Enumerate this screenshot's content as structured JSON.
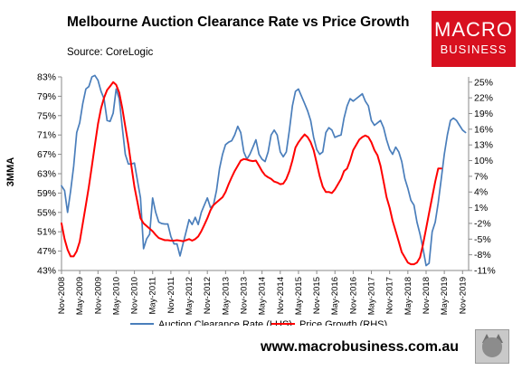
{
  "header": {
    "title": "Melbourne Auction Clearance Rate vs Price Growth",
    "source": "Source: CoreLogic"
  },
  "logo": {
    "line1": "MACRO",
    "line2": "BUSINESS"
  },
  "footer": {
    "website": "www.macrobusiness.com.au"
  },
  "colors": {
    "clearance": "#4a7ebb",
    "growth": "#ff0000",
    "logo_bg": "#d8101f"
  },
  "chart_data": {
    "type": "line",
    "ylabel": "3MMA",
    "y_left": {
      "min": 43,
      "max": 83,
      "ticks": [
        "43%",
        "47%",
        "51%",
        "55%",
        "59%",
        "63%",
        "67%",
        "71%",
        "75%",
        "79%",
        "83%"
      ]
    },
    "y_right": {
      "min": -11,
      "max": 26,
      "ticks": [
        "-11%",
        "-8%",
        "-5%",
        "-2%",
        "1%",
        "4%",
        "7%",
        "10%",
        "13%",
        "16%",
        "19%",
        "22%",
        "25%"
      ]
    },
    "x_labels": [
      "Nov-2008",
      "May-2009",
      "Nov-2009",
      "May-2010",
      "Nov-2010",
      "May-2011",
      "Nov-2011",
      "May-2012",
      "Nov-2012",
      "May-2013",
      "Nov-2013",
      "May-2014",
      "Nov-2014",
      "May-2015",
      "Nov-2015",
      "May-2016",
      "Nov-2016",
      "May-2017",
      "Nov-2017",
      "May-2018",
      "Nov-2018",
      "May-2019",
      "Nov-2019"
    ],
    "series": [
      {
        "name": "Auction Clearance Rate (LHS)",
        "axis": "left",
        "points": [
          [
            "2008-11",
            60.5
          ],
          [
            "2008-12",
            59.5
          ],
          [
            "2009-01",
            55.0
          ],
          [
            "2009-02",
            59.5
          ],
          [
            "2009-03",
            64.5
          ],
          [
            "2009-04",
            71.5
          ],
          [
            "2009-05",
            73.5
          ],
          [
            "2009-06",
            77.5
          ],
          [
            "2009-07",
            80.5
          ],
          [
            "2009-08",
            81.0
          ],
          [
            "2009-09",
            83.0
          ],
          [
            "2009-10",
            83.3
          ],
          [
            "2009-11",
            82.3
          ],
          [
            "2009-12",
            80.0
          ],
          [
            "2010-01",
            78.5
          ],
          [
            "2010-02",
            74.0
          ],
          [
            "2010-03",
            73.8
          ],
          [
            "2010-04",
            75.5
          ],
          [
            "2010-05",
            80.5
          ],
          [
            "2010-06",
            78.5
          ],
          [
            "2010-07",
            72.5
          ],
          [
            "2010-08",
            67.0
          ],
          [
            "2010-09",
            65.0
          ],
          [
            "2010-10",
            65.0
          ],
          [
            "2010-11",
            65.2
          ],
          [
            "2010-12",
            61.5
          ],
          [
            "2011-01",
            58.0
          ],
          [
            "2011-02",
            47.5
          ],
          [
            "2011-03",
            49.5
          ],
          [
            "2011-04",
            50.5
          ],
          [
            "2011-05",
            58.0
          ],
          [
            "2011-06",
            55.0
          ],
          [
            "2011-07",
            53.0
          ],
          [
            "2011-08",
            52.7
          ],
          [
            "2011-09",
            52.6
          ],
          [
            "2011-10",
            52.6
          ],
          [
            "2011-11",
            50.0
          ],
          [
            "2011-12",
            48.5
          ],
          [
            "2012-01",
            48.5
          ],
          [
            "2012-02",
            46.0
          ],
          [
            "2012-03",
            48.5
          ],
          [
            "2012-04",
            51.0
          ],
          [
            "2012-05",
            53.5
          ],
          [
            "2012-06",
            52.5
          ],
          [
            "2012-07",
            54.0
          ],
          [
            "2012-08",
            52.5
          ],
          [
            "2012-09",
            55.0
          ],
          [
            "2012-10",
            56.5
          ],
          [
            "2012-11",
            58.0
          ],
          [
            "2012-12",
            56.0
          ],
          [
            "2013-01",
            56.5
          ],
          [
            "2013-02",
            59.5
          ],
          [
            "2013-03",
            64.0
          ],
          [
            "2013-04",
            67.0
          ],
          [
            "2013-05",
            69.0
          ],
          [
            "2013-06",
            69.5
          ],
          [
            "2013-07",
            69.8
          ],
          [
            "2013-08",
            71.0
          ],
          [
            "2013-09",
            72.8
          ],
          [
            "2013-10",
            71.5
          ],
          [
            "2013-11",
            67.5
          ],
          [
            "2013-12",
            66.0
          ],
          [
            "2014-01",
            67.0
          ],
          [
            "2014-02",
            68.5
          ],
          [
            "2014-03",
            70.0
          ],
          [
            "2014-04",
            67.0
          ],
          [
            "2014-05",
            66.0
          ],
          [
            "2014-06",
            65.5
          ],
          [
            "2014-07",
            67.5
          ],
          [
            "2014-08",
            71.0
          ],
          [
            "2014-09",
            72.0
          ],
          [
            "2014-10",
            71.0
          ],
          [
            "2014-11",
            67.5
          ],
          [
            "2014-12",
            66.5
          ],
          [
            "2015-01",
            67.5
          ],
          [
            "2015-02",
            72.0
          ],
          [
            "2015-03",
            77.0
          ],
          [
            "2015-04",
            80.0
          ],
          [
            "2015-05",
            80.5
          ],
          [
            "2015-06",
            79.0
          ],
          [
            "2015-07",
            77.5
          ],
          [
            "2015-08",
            76.0
          ],
          [
            "2015-09",
            74.0
          ],
          [
            "2015-10",
            70.5
          ],
          [
            "2015-11",
            68.0
          ],
          [
            "2015-12",
            67.0
          ],
          [
            "2016-01",
            67.5
          ],
          [
            "2016-02",
            71.5
          ],
          [
            "2016-03",
            72.5
          ],
          [
            "2016-04",
            72.0
          ],
          [
            "2016-05",
            70.5
          ],
          [
            "2016-06",
            70.8
          ],
          [
            "2016-07",
            71.0
          ],
          [
            "2016-08",
            74.5
          ],
          [
            "2016-09",
            77.0
          ],
          [
            "2016-10",
            78.5
          ],
          [
            "2016-11",
            78.0
          ],
          [
            "2016-12",
            78.5
          ],
          [
            "2017-01",
            79.0
          ],
          [
            "2017-02",
            79.5
          ],
          [
            "2017-03",
            78.0
          ],
          [
            "2017-04",
            77.0
          ],
          [
            "2017-05",
            74.0
          ],
          [
            "2017-06",
            73.0
          ],
          [
            "2017-07",
            73.5
          ],
          [
            "2017-08",
            74.0
          ],
          [
            "2017-09",
            72.5
          ],
          [
            "2017-10",
            70.0
          ],
          [
            "2017-11",
            68.0
          ],
          [
            "2017-12",
            67.0
          ],
          [
            "2018-01",
            68.5
          ],
          [
            "2018-02",
            67.5
          ],
          [
            "2018-03",
            65.5
          ],
          [
            "2018-04",
            62.0
          ],
          [
            "2018-05",
            60.0
          ],
          [
            "2018-06",
            57.5
          ],
          [
            "2018-07",
            56.5
          ],
          [
            "2018-08",
            53.0
          ],
          [
            "2018-09",
            50.5
          ],
          [
            "2018-10",
            47.5
          ],
          [
            "2018-11",
            44.0
          ],
          [
            "2018-12",
            44.5
          ],
          [
            "2019-01",
            51.0
          ],
          [
            "2019-02",
            53.0
          ],
          [
            "2019-03",
            57.0
          ],
          [
            "2019-04",
            62.0
          ],
          [
            "2019-05",
            67.0
          ],
          [
            "2019-06",
            71.0
          ],
          [
            "2019-07",
            74.0
          ],
          [
            "2019-08",
            74.5
          ],
          [
            "2019-09",
            74.0
          ],
          [
            "2019-10",
            73.0
          ],
          [
            "2019-11",
            72.0
          ],
          [
            "2019-12",
            71.5
          ]
        ]
      },
      {
        "name": "Price Growth (RHS)",
        "axis": "right",
        "points": [
          [
            "2008-11",
            -2.0
          ],
          [
            "2008-12",
            -5.0
          ],
          [
            "2009-01",
            -7.0
          ],
          [
            "2009-02",
            -8.3
          ],
          [
            "2009-03",
            -8.3
          ],
          [
            "2009-04",
            -7.3
          ],
          [
            "2009-05",
            -5.5
          ],
          [
            "2009-06",
            -2.0
          ],
          [
            "2009-07",
            1.5
          ],
          [
            "2009-08",
            5.0
          ],
          [
            "2009-09",
            9.0
          ],
          [
            "2009-10",
            13.0
          ],
          [
            "2009-11",
            17.0
          ],
          [
            "2009-12",
            20.0
          ],
          [
            "2010-01",
            22.0
          ],
          [
            "2010-02",
            23.5
          ],
          [
            "2010-03",
            24.2
          ],
          [
            "2010-04",
            25.0
          ],
          [
            "2010-05",
            24.5
          ],
          [
            "2010-06",
            23.0
          ],
          [
            "2010-07",
            20.0
          ],
          [
            "2010-08",
            16.5
          ],
          [
            "2010-09",
            13.0
          ],
          [
            "2010-10",
            9.0
          ],
          [
            "2010-11",
            5.0
          ],
          [
            "2010-12",
            2.0
          ],
          [
            "2011-01",
            -1.0
          ],
          [
            "2011-02",
            -2.0
          ],
          [
            "2011-03",
            -2.5
          ],
          [
            "2011-04",
            -3.0
          ],
          [
            "2011-05",
            -3.5
          ],
          [
            "2011-06",
            -4.2
          ],
          [
            "2011-07",
            -4.8
          ],
          [
            "2011-08",
            -5.0
          ],
          [
            "2011-09",
            -5.2
          ],
          [
            "2011-10",
            -5.2
          ],
          [
            "2011-11",
            -5.3
          ],
          [
            "2011-12",
            -5.3
          ],
          [
            "2012-01",
            -5.2
          ],
          [
            "2012-02",
            -5.3
          ],
          [
            "2012-03",
            -5.4
          ],
          [
            "2012-04",
            -5.2
          ],
          [
            "2012-05",
            -5.0
          ],
          [
            "2012-06",
            -5.3
          ],
          [
            "2012-07",
            -5.0
          ],
          [
            "2012-08",
            -4.5
          ],
          [
            "2012-09",
            -3.5
          ],
          [
            "2012-10",
            -2.3
          ],
          [
            "2012-11",
            -1.0
          ],
          [
            "2012-12",
            0.5
          ],
          [
            "2013-01",
            1.5
          ],
          [
            "2013-02",
            2.0
          ],
          [
            "2013-03",
            2.5
          ],
          [
            "2013-04",
            3.0
          ],
          [
            "2013-05",
            4.0
          ],
          [
            "2013-06",
            5.5
          ],
          [
            "2013-07",
            6.8
          ],
          [
            "2013-08",
            8.0
          ],
          [
            "2013-09",
            9.0
          ],
          [
            "2013-10",
            10.0
          ],
          [
            "2013-11",
            10.3
          ],
          [
            "2013-12",
            10.2
          ],
          [
            "2014-01",
            10.0
          ],
          [
            "2014-02",
            9.9
          ],
          [
            "2014-03",
            10.0
          ],
          [
            "2014-04",
            9.0
          ],
          [
            "2014-05",
            8.0
          ],
          [
            "2014-06",
            7.2
          ],
          [
            "2014-07",
            6.8
          ],
          [
            "2014-08",
            6.5
          ],
          [
            "2014-09",
            6.0
          ],
          [
            "2014-10",
            5.8
          ],
          [
            "2014-11",
            5.5
          ],
          [
            "2014-12",
            5.6
          ],
          [
            "2015-01",
            6.5
          ],
          [
            "2015-02",
            8.0
          ],
          [
            "2015-03",
            10.0
          ],
          [
            "2015-04",
            12.5
          ],
          [
            "2015-05",
            13.5
          ],
          [
            "2015-06",
            14.3
          ],
          [
            "2015-07",
            15.0
          ],
          [
            "2015-08",
            14.5
          ],
          [
            "2015-09",
            13.5
          ],
          [
            "2015-10",
            12.0
          ],
          [
            "2015-11",
            9.5
          ],
          [
            "2015-12",
            7.0
          ],
          [
            "2016-01",
            5.0
          ],
          [
            "2016-02",
            4.0
          ],
          [
            "2016-03",
            4.0
          ],
          [
            "2016-04",
            3.8
          ],
          [
            "2016-05",
            4.5
          ],
          [
            "2016-06",
            5.5
          ],
          [
            "2016-07",
            6.5
          ],
          [
            "2016-08",
            8.0
          ],
          [
            "2016-09",
            8.5
          ],
          [
            "2016-10",
            10.0
          ],
          [
            "2016-11",
            12.0
          ],
          [
            "2016-12",
            13.0
          ],
          [
            "2017-01",
            14.0
          ],
          [
            "2017-02",
            14.5
          ],
          [
            "2017-03",
            14.8
          ],
          [
            "2017-04",
            14.5
          ],
          [
            "2017-05",
            13.5
          ],
          [
            "2017-06",
            12.0
          ],
          [
            "2017-07",
            11.0
          ],
          [
            "2017-08",
            9.0
          ],
          [
            "2017-09",
            6.0
          ],
          [
            "2017-10",
            3.0
          ],
          [
            "2017-11",
            1.0
          ],
          [
            "2017-12",
            -1.5
          ],
          [
            "2018-01",
            -3.5
          ],
          [
            "2018-02",
            -5.5
          ],
          [
            "2018-03",
            -7.5
          ],
          [
            "2018-04",
            -8.5
          ],
          [
            "2018-05",
            -9.5
          ],
          [
            "2018-06",
            -9.8
          ],
          [
            "2018-07",
            -9.8
          ],
          [
            "2018-08",
            -9.5
          ],
          [
            "2018-09",
            -8.5
          ],
          [
            "2018-10",
            -6.0
          ],
          [
            "2018-11",
            -3.0
          ],
          [
            "2018-12",
            0.0
          ],
          [
            "2019-01",
            3.0
          ],
          [
            "2019-02",
            6.0
          ],
          [
            "2019-03",
            8.5
          ],
          [
            "2019-04",
            8.5
          ]
        ]
      }
    ],
    "legend": {
      "placement": "bottom"
    },
    "grid": false
  }
}
